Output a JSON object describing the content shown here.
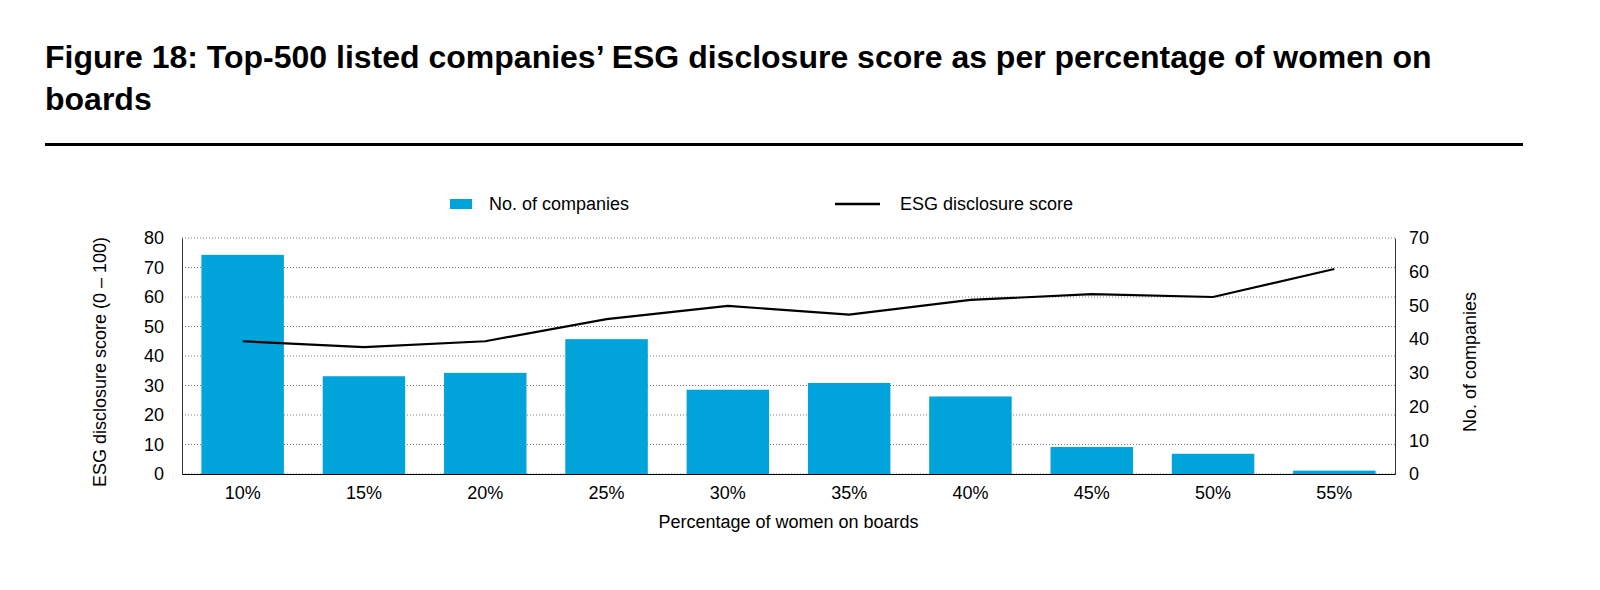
{
  "chart_data": {
    "type": "bar",
    "title": "Figure 18: Top-500 listed companies’ ESG disclosure score as per percentage of women on boards",
    "x_label": "Percentage of women on boards",
    "y_label": "ESG disclosure score (0 – 100)",
    "y2_label": "No. of companies",
    "categories": [
      "10%",
      "15%",
      "20%",
      "25%",
      "30%",
      "35%",
      "40%",
      "45%",
      "50%",
      "55%"
    ],
    "series": [
      {
        "name": "No. of companies",
        "type": "bar",
        "color": "#00a3da",
        "axis": "y2",
        "values": [
          65,
          29,
          30,
          40,
          25,
          27,
          23,
          8,
          6,
          1
        ]
      },
      {
        "name": "ESG disclosure score",
        "type": "line",
        "color": "#000000",
        "values": [
          45,
          43,
          45,
          52.5,
          57,
          54,
          59,
          61,
          60,
          69.5
        ]
      }
    ],
    "ylim": [
      0,
      80
    ],
    "yticks": [
      0,
      10,
      20,
      30,
      40,
      50,
      60,
      70,
      80
    ],
    "y2lim": [
      0,
      70
    ],
    "y2ticks": [
      0,
      10,
      20,
      30,
      40,
      50,
      60,
      70
    ],
    "grid": true,
    "legend": "top"
  }
}
